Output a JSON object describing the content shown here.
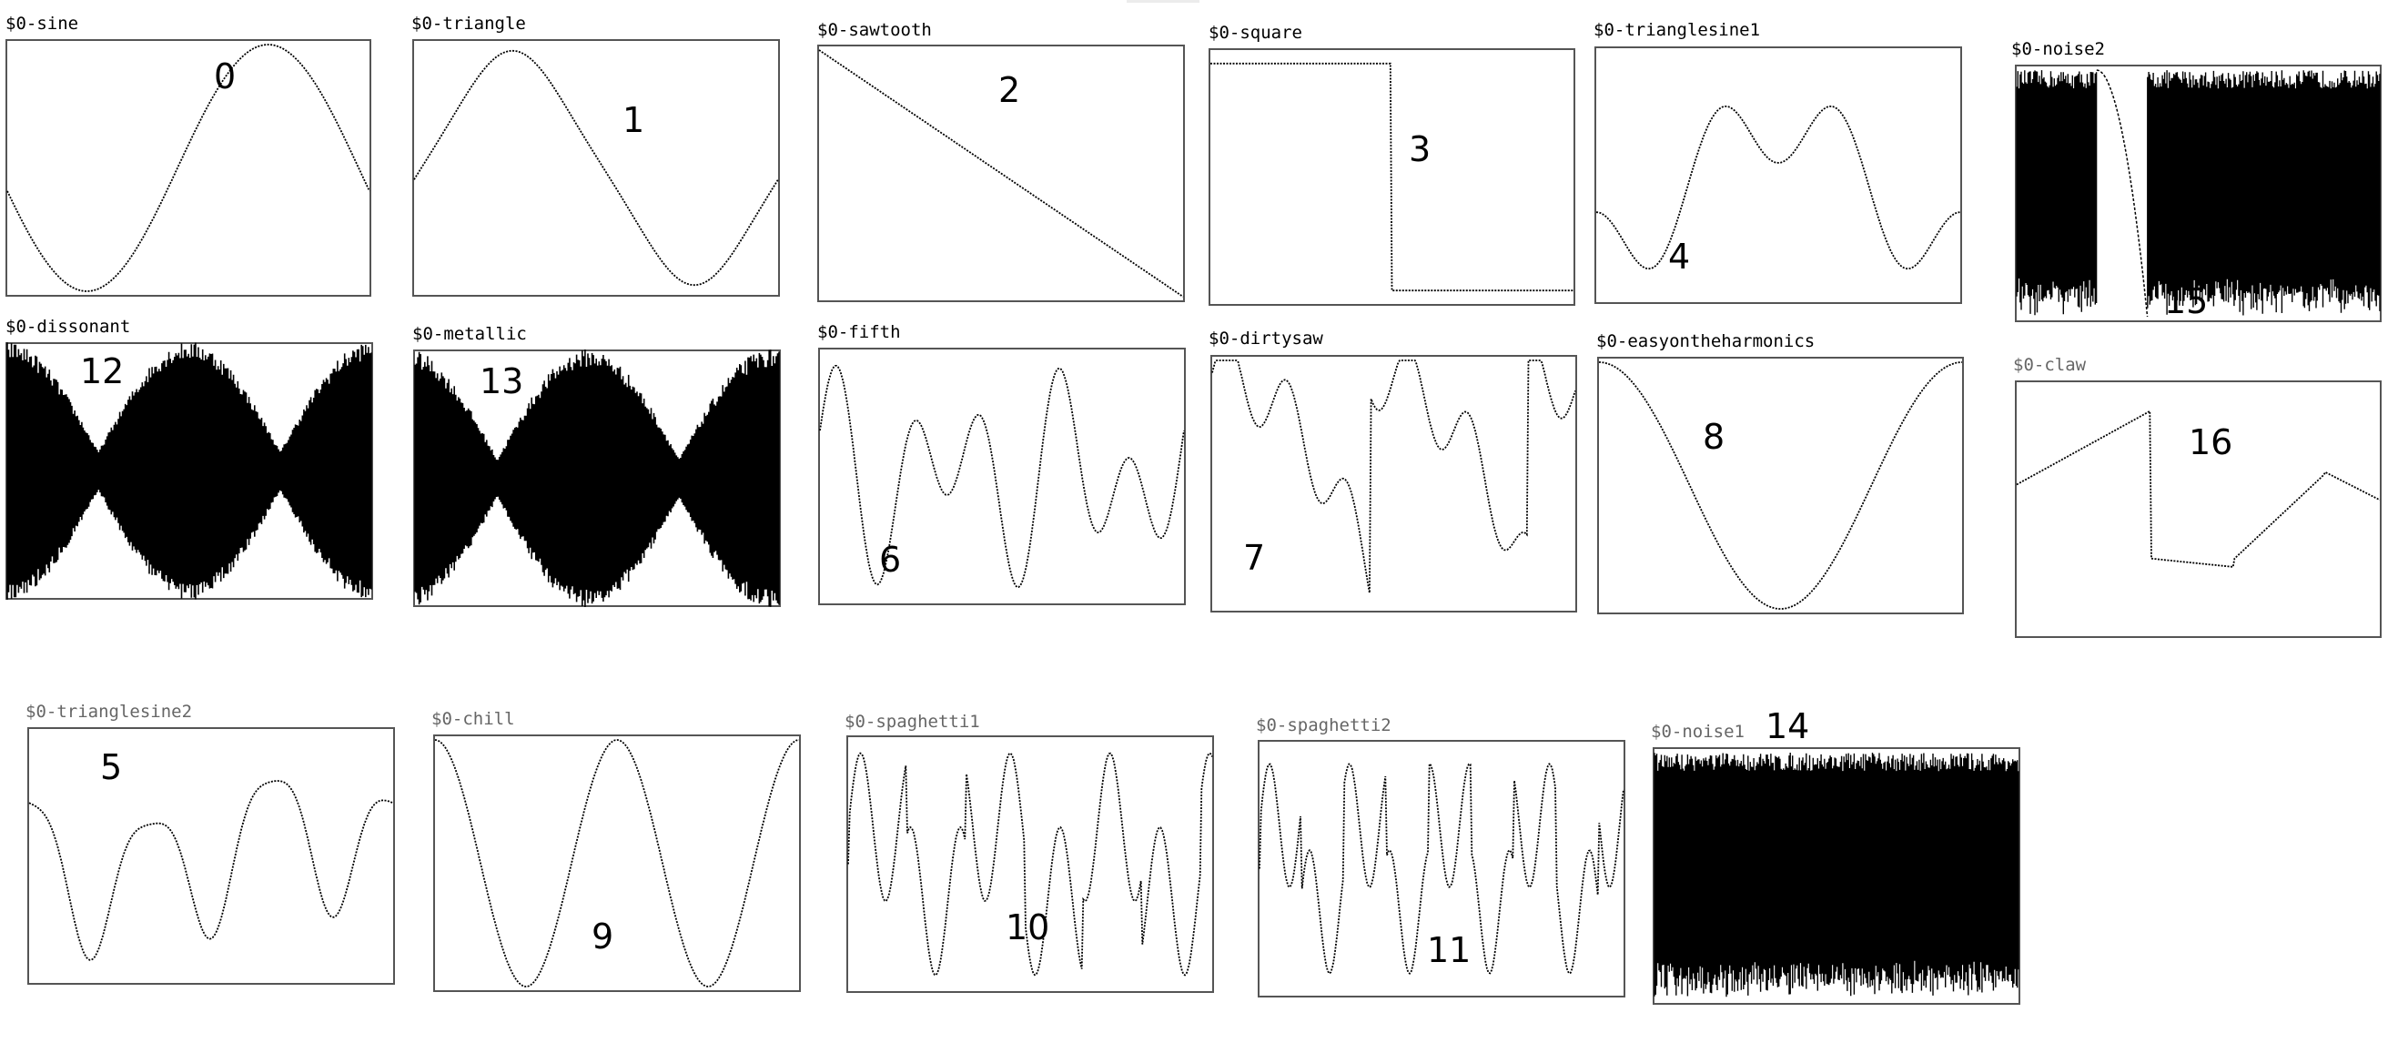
{
  "window": {
    "title": ""
  },
  "colors": {
    "background": "#ffffff",
    "box_border": "#555555",
    "wave": "#000000",
    "label_dark": "#000000",
    "label_gray": "#666666"
  },
  "arrays": [
    {
      "label": "$0-sine",
      "number": "0",
      "waveform": "sine",
      "label_color": "#000000"
    },
    {
      "label": "$0-triangle",
      "number": "1",
      "waveform": "triangle-smooth",
      "label_color": "#000000"
    },
    {
      "label": "$0-sawtooth",
      "number": "2",
      "waveform": "sawtooth",
      "label_color": "#000000"
    },
    {
      "label": "$0-square",
      "number": "3",
      "waveform": "square",
      "label_color": "#000000"
    },
    {
      "label": "$0-trianglesine1",
      "number": "4",
      "waveform": "trianglesine1",
      "label_color": "#000000"
    },
    {
      "label": "$0-noise2",
      "number": "15",
      "waveform": "noise2",
      "label_color": "#000000"
    },
    {
      "label": "$0-dissonant",
      "number": "12",
      "waveform": "dissonant",
      "label_color": "#000000"
    },
    {
      "label": "$0-metallic",
      "number": "13",
      "waveform": "metallic",
      "label_color": "#000000"
    },
    {
      "label": "$0-fifth",
      "number": "6",
      "waveform": "fifth",
      "label_color": "#000000"
    },
    {
      "label": "$0-dirtysaw",
      "number": "7",
      "waveform": "dirtysaw",
      "label_color": "#000000"
    },
    {
      "label": "$0-easyontheharmonics",
      "number": "8",
      "waveform": "easy",
      "label_color": "#000000"
    },
    {
      "label": "$0-claw",
      "number": "16",
      "waveform": "claw",
      "label_color": "#666666"
    },
    {
      "label": "$0-trianglesine2",
      "number": "5",
      "waveform": "trianglesine2",
      "label_color": "#666666"
    },
    {
      "label": "$0-chill",
      "number": "9",
      "waveform": "chill",
      "label_color": "#666666"
    },
    {
      "label": "$0-spaghetti1",
      "number": "10",
      "waveform": "spaghetti1",
      "label_color": "#666666"
    },
    {
      "label": "$0-spaghetti2",
      "number": "11",
      "waveform": "spaghetti2",
      "label_color": "#666666"
    },
    {
      "label": "$0-noise1",
      "number": "14",
      "waveform": "noise1",
      "label_color": "#666666"
    }
  ]
}
